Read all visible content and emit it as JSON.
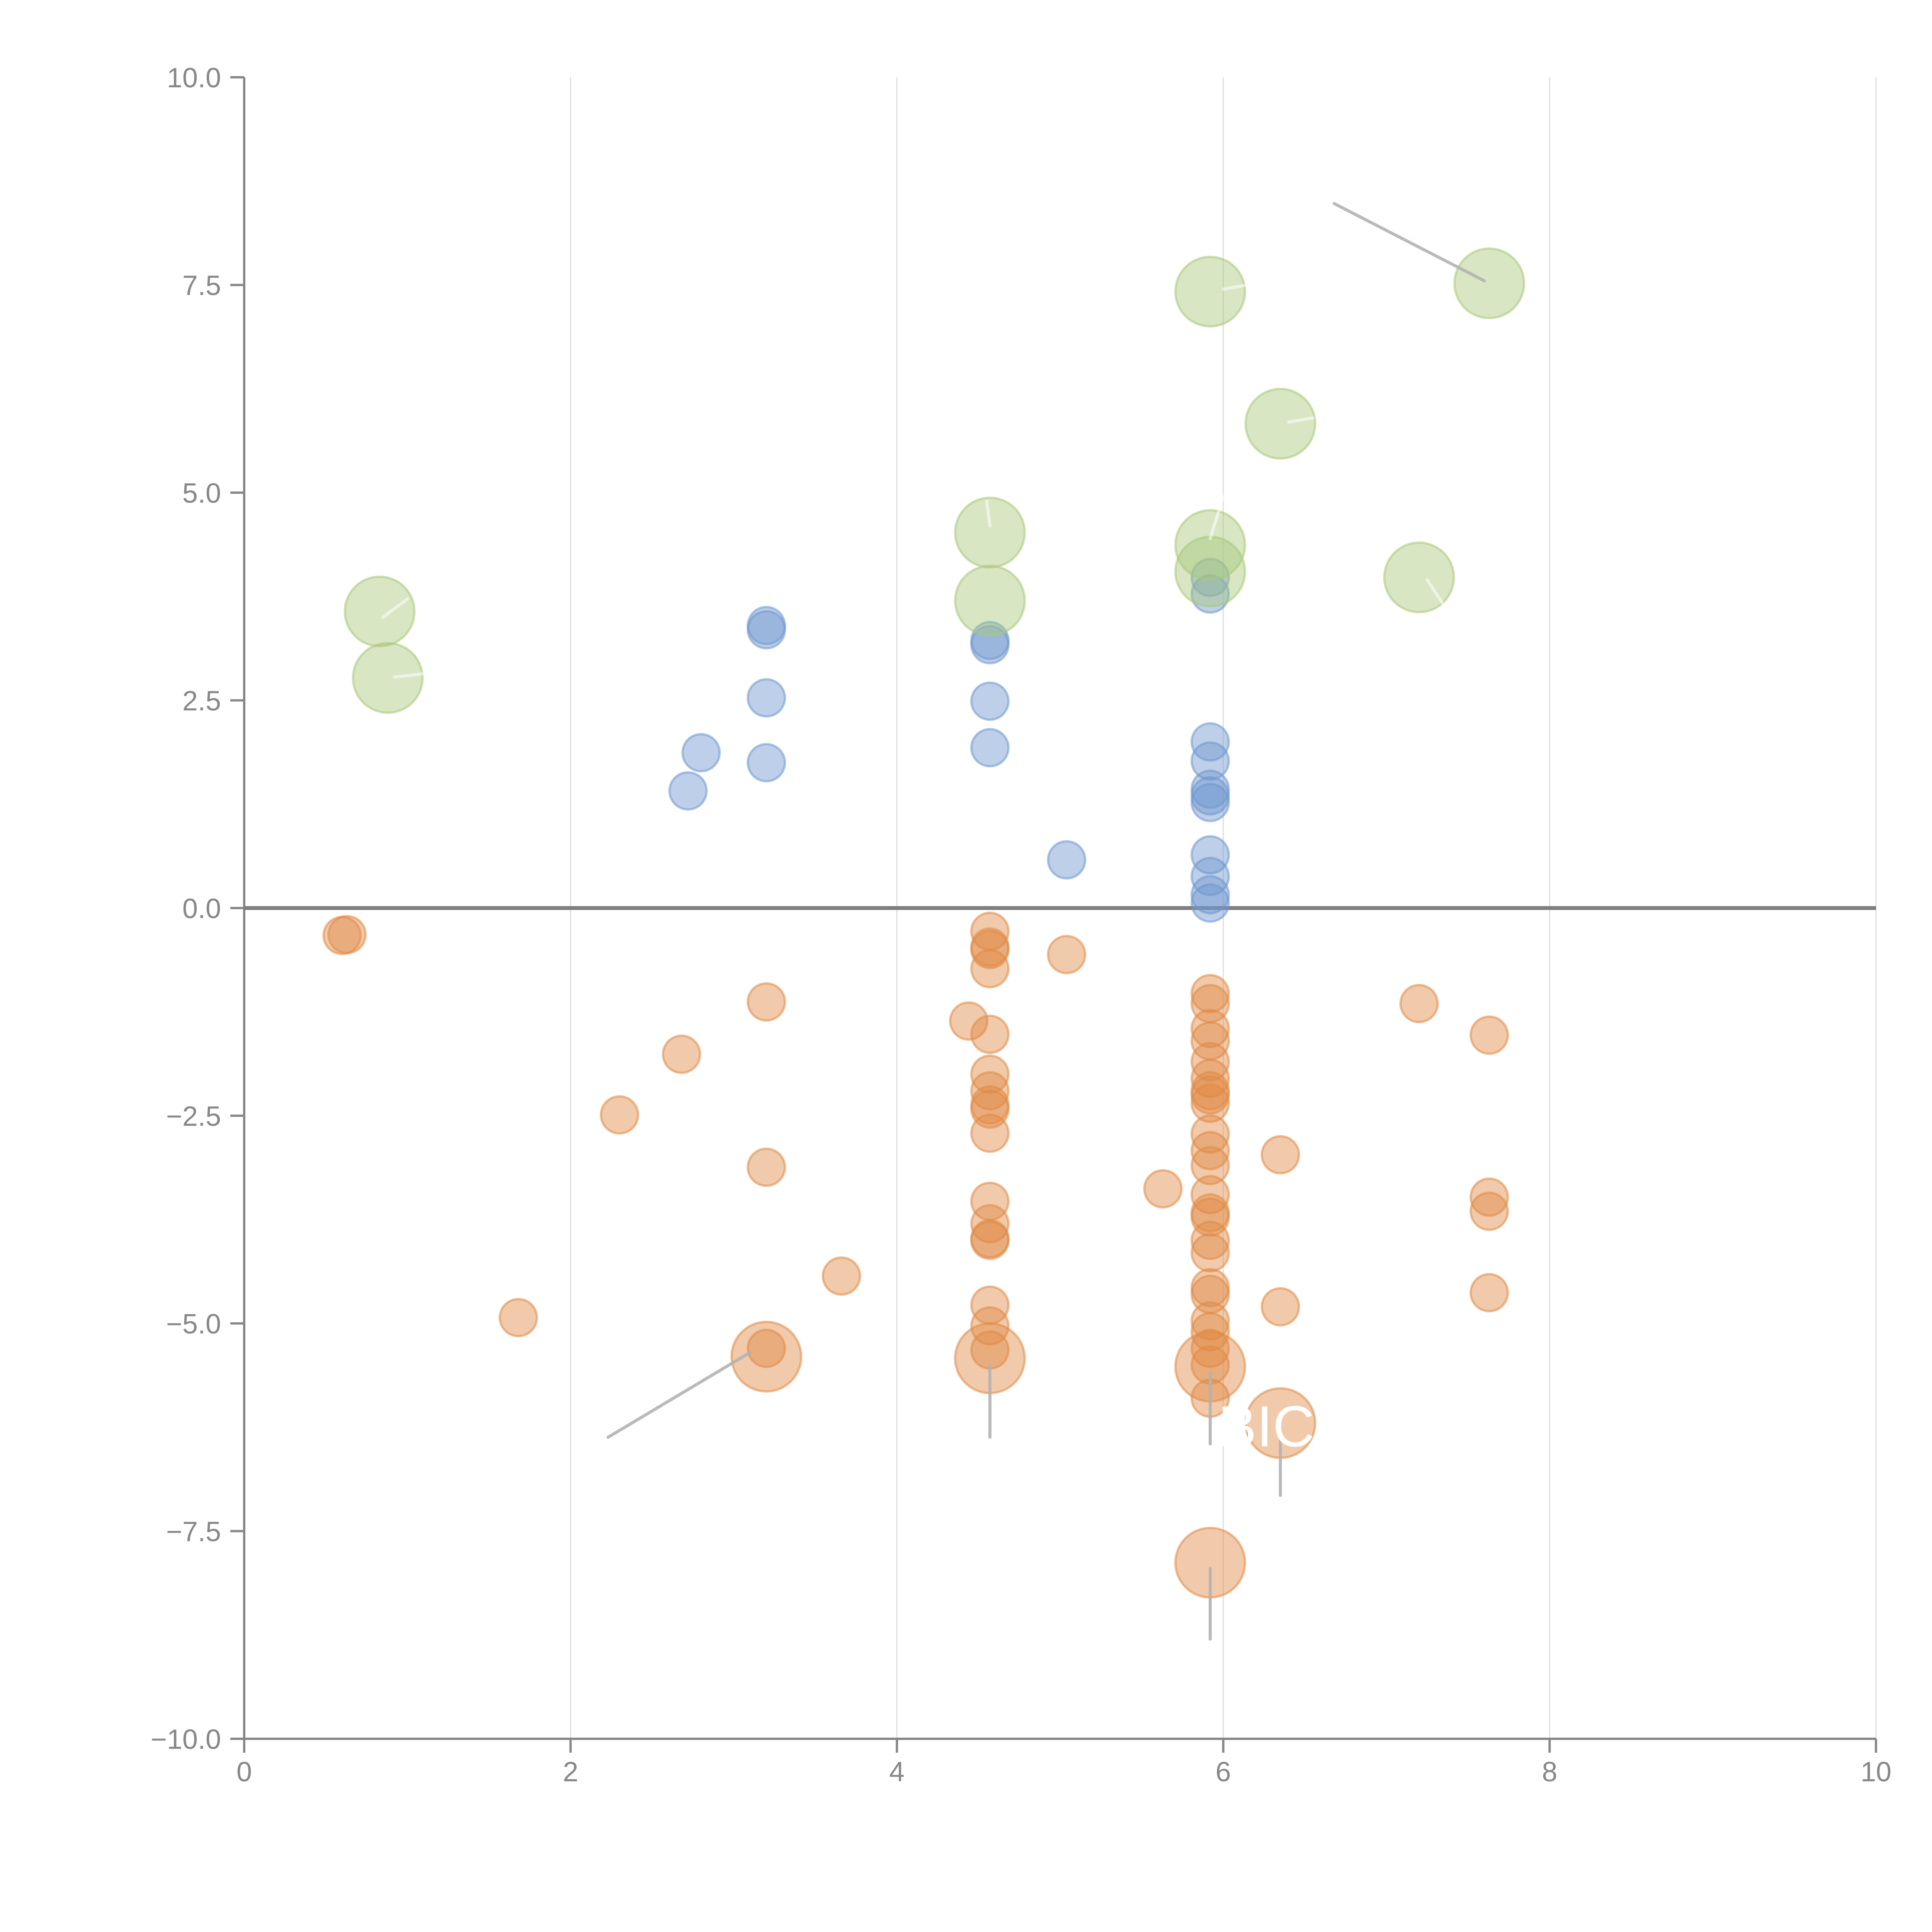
{
  "chart_data": {
    "type": "scatter",
    "title": "",
    "xlabel": "",
    "ylabel": "",
    "xlim": [
      0,
      10
    ],
    "ylim": [
      -10,
      10
    ],
    "x_ticks": [
      "0",
      "2",
      "4",
      "6",
      "8",
      "10"
    ],
    "y_ticks": [
      "10.0",
      "7.5",
      "5.0",
      "2.5",
      "0.0",
      "−2.5",
      "−5.0",
      "−7.5",
      "−10.0"
    ],
    "grid": "vertical",
    "zero_line": true,
    "colors": {
      "blue": "#6f97cf",
      "orange": "#e08a45",
      "green": "#a9c87a",
      "leader": "#b3b3b3"
    },
    "series": [
      {
        "name": "blue",
        "size": "small",
        "points": [
          [
            3.2,
            3.4
          ],
          [
            3.2,
            3.35
          ],
          [
            3.2,
            2.53
          ],
          [
            3.2,
            1.75
          ],
          [
            2.8,
            1.87
          ],
          [
            2.72,
            1.41
          ],
          [
            4.57,
            3.22
          ],
          [
            4.57,
            3.17
          ],
          [
            4.57,
            2.49
          ],
          [
            4.57,
            1.93
          ],
          [
            5.04,
            0.58
          ],
          [
            5.92,
            3.98
          ],
          [
            5.92,
            3.78
          ],
          [
            5.92,
            2.0
          ],
          [
            5.92,
            1.77
          ],
          [
            5.92,
            1.43
          ],
          [
            5.92,
            1.35
          ],
          [
            5.92,
            1.27
          ],
          [
            5.92,
            0.64
          ],
          [
            5.92,
            0.38
          ],
          [
            5.92,
            0.16
          ],
          [
            5.92,
            0.06
          ]
        ]
      },
      {
        "name": "orange",
        "size": "small",
        "points": [
          [
            0.6,
            -0.33
          ],
          [
            0.63,
            -0.32
          ],
          [
            1.68,
            -4.93
          ],
          [
            2.3,
            -2.49
          ],
          [
            2.68,
            -1.76
          ],
          [
            3.2,
            -1.13
          ],
          [
            3.2,
            -3.12
          ],
          [
            3.2,
            -5.3
          ],
          [
            3.66,
            -4.43
          ],
          [
            4.44,
            -1.36
          ],
          [
            4.57,
            -0.28
          ],
          [
            4.57,
            -0.47
          ],
          [
            4.57,
            -0.5
          ],
          [
            4.57,
            -0.73
          ],
          [
            4.57,
            -1.52
          ],
          [
            4.57,
            -2.0
          ],
          [
            4.57,
            -2.2
          ],
          [
            4.57,
            -2.37
          ],
          [
            4.57,
            -2.42
          ],
          [
            4.57,
            -2.71
          ],
          [
            4.57,
            -3.53
          ],
          [
            4.57,
            -3.8
          ],
          [
            4.57,
            -3.98
          ],
          [
            4.57,
            -4.0
          ],
          [
            4.57,
            -4.78
          ],
          [
            4.57,
            -5.03
          ],
          [
            4.57,
            -5.32
          ],
          [
            5.04,
            -0.56
          ],
          [
            5.63,
            -3.38
          ],
          [
            5.92,
            -1.03
          ],
          [
            5.92,
            -1.15
          ],
          [
            5.92,
            -1.45
          ],
          [
            5.92,
            -1.6
          ],
          [
            5.92,
            -1.85
          ],
          [
            5.92,
            -2.05
          ],
          [
            5.92,
            -2.2
          ],
          [
            5.92,
            -2.25
          ],
          [
            5.92,
            -2.35
          ],
          [
            5.92,
            -2.72
          ],
          [
            5.92,
            -2.92
          ],
          [
            5.92,
            -3.1
          ],
          [
            5.92,
            -3.45
          ],
          [
            5.92,
            -3.67
          ],
          [
            5.92,
            -3.72
          ],
          [
            5.92,
            -4.0
          ],
          [
            5.92,
            -4.15
          ],
          [
            5.92,
            -4.57
          ],
          [
            5.92,
            -4.65
          ],
          [
            5.92,
            -4.97
          ],
          [
            5.92,
            -5.1
          ],
          [
            5.92,
            -5.3
          ],
          [
            5.92,
            -5.5
          ],
          [
            5.92,
            -5.9
          ],
          [
            6.35,
            -2.97
          ],
          [
            6.35,
            -4.8
          ],
          [
            7.2,
            -1.15
          ],
          [
            7.63,
            -1.53
          ],
          [
            7.63,
            -3.48
          ],
          [
            7.63,
            -3.65
          ],
          [
            7.63,
            -4.63
          ]
        ]
      },
      {
        "name": "orange-large",
        "size": "large",
        "points": [
          [
            3.2,
            -5.4
          ],
          [
            4.57,
            -5.42
          ],
          [
            5.92,
            -5.52
          ],
          [
            6.35,
            -6.2
          ],
          [
            5.92,
            -7.88
          ]
        ]
      },
      {
        "name": "green",
        "size": "large",
        "points": [
          [
            0.83,
            3.57
          ],
          [
            0.88,
            2.77
          ],
          [
            4.57,
            4.52
          ],
          [
            4.57,
            3.7
          ],
          [
            5.92,
            7.42
          ],
          [
            5.92,
            4.37
          ],
          [
            5.92,
            4.05
          ],
          [
            6.35,
            5.83
          ],
          [
            7.2,
            3.98
          ],
          [
            7.63,
            7.52
          ]
        ]
      }
    ],
    "leader_lines": [
      {
        "from": [
          7.6,
          7.55
        ],
        "to": [
          6.68,
          8.48
        ]
      },
      {
        "from": [
          3.1,
          -5.35
        ],
        "to": [
          2.23,
          -6.37
        ]
      },
      {
        "from": [
          4.57,
          -5.5
        ],
        "to": [
          4.57,
          -6.37
        ]
      },
      {
        "from": [
          5.92,
          -5.6
        ],
        "to": [
          5.92,
          -6.45
        ]
      },
      {
        "from": [
          6.35,
          -6.3
        ],
        "to": [
          6.35,
          -7.07
        ]
      },
      {
        "from": [
          5.92,
          -7.95
        ],
        "to": [
          5.92,
          -8.8
        ]
      },
      {
        "from": [
          0.85,
          3.5
        ],
        "to": [
          1.0,
          3.72
        ]
      },
      {
        "from": [
          0.92,
          2.78
        ],
        "to": [
          1.1,
          2.82
        ]
      },
      {
        "from": [
          4.57,
          4.6
        ],
        "to": [
          4.55,
          4.9
        ]
      },
      {
        "from": [
          5.92,
          4.45
        ],
        "to": [
          6.0,
          4.95
        ]
      },
      {
        "from": [
          6.0,
          7.45
        ],
        "to": [
          6.15,
          7.5
        ]
      },
      {
        "from": [
          6.4,
          5.85
        ],
        "to": [
          6.55,
          5.9
        ]
      },
      {
        "from": [
          7.25,
          3.95
        ],
        "to": [
          7.35,
          3.65
        ]
      }
    ],
    "annotations": [
      {
        "text": "BICO",
        "x": 5.92,
        "y": -6.2,
        "color": "#ffffff"
      }
    ]
  }
}
